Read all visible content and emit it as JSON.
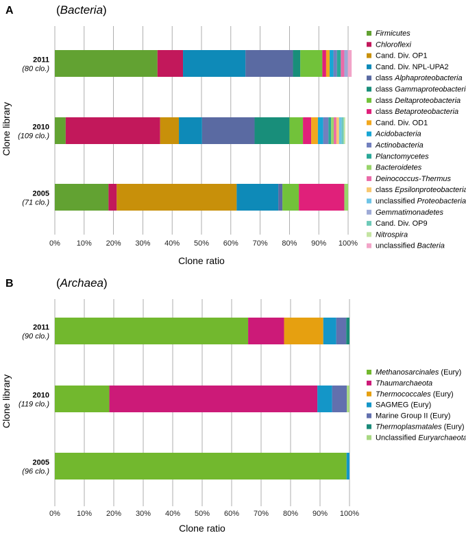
{
  "chart_data": [
    {
      "type": "bar",
      "orientation": "horizontal",
      "stacked": true,
      "panel_label": "A",
      "title": "(Bacteria)",
      "xlabel": "Clone ratio",
      "ylabel": "Clone library",
      "xlim": [
        0,
        100
      ],
      "xticks": [
        "0%",
        "10%",
        "20%",
        "30%",
        "40%",
        "50%",
        "60%",
        "70%",
        "80%",
        "90%",
        "100%"
      ],
      "grid": true,
      "legend_position": "right",
      "categories": [
        "2011",
        "2010",
        "2005"
      ],
      "category_counts": [
        "(80 clo.)",
        "(109 clo.)",
        "(71 clo.)"
      ],
      "series": [
        {
          "name": "Firmicutes",
          "legend": [
            [
              "Firmicutes",
              true
            ]
          ],
          "color": "#62a232",
          "values": [
            35.0,
            3.7,
            18.3
          ]
        },
        {
          "name": "Chloroflexi",
          "legend": [
            [
              "Chloroflexi",
              true
            ]
          ],
          "color": "#c2185b",
          "values": [
            8.7,
            32.2,
            2.8
          ]
        },
        {
          "name": "Cand. Div. OP1",
          "legend": [
            [
              "Cand. Div. OP1",
              false
            ]
          ],
          "color": "#c8900a",
          "values": [
            0,
            6.4,
            40.9
          ]
        },
        {
          "name": "Cand. Div. NPL-UPA2",
          "legend": [
            [
              "Cand. Div. NPL-UPA2",
              false
            ]
          ],
          "color": "#0e8ab8",
          "values": [
            21.3,
            7.9,
            14.2
          ]
        },
        {
          "name": "class Alphaproteobacteria",
          "legend": [
            [
              "class ",
              false
            ],
            [
              "Alphaproteobacteria",
              true
            ]
          ],
          "color": "#5a6aa2",
          "values": [
            16.2,
            17.9,
            1.4
          ]
        },
        {
          "name": "class Gammaproteobacteria",
          "legend": [
            [
              "class ",
              false
            ],
            [
              "Gammaproteobacteria",
              true
            ]
          ],
          "color": "#188e7a",
          "values": [
            2.5,
            11.9,
            0
          ]
        },
        {
          "name": "class Deltaproteobacteria",
          "legend": [
            [
              "class ",
              false
            ],
            [
              "Deltaproteobacteria",
              true
            ]
          ],
          "color": "#72c23a",
          "values": [
            7.5,
            4.6,
            5.6
          ]
        },
        {
          "name": "class Betaproteobacteria",
          "legend": [
            [
              "class ",
              false
            ],
            [
              "Betaproteobacteria",
              true
            ]
          ],
          "color": "#e0207a",
          "values": [
            1.3,
            2.8,
            15.5
          ]
        },
        {
          "name": "Cand. Div. OD1",
          "legend": [
            [
              "Cand. Div. OD1",
              false
            ]
          ],
          "color": "#f2a81e",
          "values": [
            1.2,
            2.3,
            0
          ]
        },
        {
          "name": "Acidobacteria",
          "legend": [
            [
              "Acidobacteria",
              true
            ]
          ],
          "color": "#18a6d4",
          "values": [
            1.3,
            1.8,
            0
          ]
        },
        {
          "name": "Actinobacteria",
          "legend": [
            [
              "Actinobacteria",
              true
            ]
          ],
          "color": "#7280be",
          "values": [
            1.2,
            1.8,
            0
          ]
        },
        {
          "name": "Planctomycetes",
          "legend": [
            [
              "Planctomycetes",
              true
            ]
          ],
          "color": "#2aa898",
          "values": [
            1.3,
            0.9,
            0
          ]
        },
        {
          "name": "Bacteroidetes",
          "legend": [
            [
              "Bacteroidetes",
              true
            ]
          ],
          "color": "#98d46a",
          "values": [
            0,
            0.9,
            1.3
          ]
        },
        {
          "name": "Deinococcus-Thermus",
          "legend": [
            [
              "Deinococcus-Thermus",
              true
            ]
          ],
          "color": "#ea6aa8",
          "values": [
            1.2,
            0.9,
            0
          ]
        },
        {
          "name": "class Epsilonproteobacteria",
          "legend": [
            [
              "class ",
              false
            ],
            [
              "Epsilonproteobacteria",
              true
            ]
          ],
          "color": "#f8c870",
          "values": [
            0,
            0.9,
            0
          ]
        },
        {
          "name": "unclassified Proteobacteria",
          "legend": [
            [
              "unclassified ",
              false
            ],
            [
              "Proteobacteria",
              true
            ]
          ],
          "color": "#6ec4e6",
          "values": [
            0,
            0.9,
            0
          ]
        },
        {
          "name": "Gemmatimonadetes",
          "legend": [
            [
              "Gemmatimonadetes",
              true
            ]
          ],
          "color": "#9eaad6",
          "values": [
            1.2,
            0,
            0
          ]
        },
        {
          "name": "Cand. Div. OP9",
          "legend": [
            [
              "Cand. Div. OP9",
              false
            ]
          ],
          "color": "#6ecab8",
          "values": [
            0,
            0.7,
            0
          ]
        },
        {
          "name": "Nitrospira",
          "legend": [
            [
              "Nitrospira",
              true
            ]
          ],
          "color": "#c4e4a2",
          "values": [
            0,
            0.5,
            0
          ]
        },
        {
          "name": "unclassified Bacteria",
          "legend": [
            [
              "unclassified ",
              false
            ],
            [
              "Bacteria",
              true
            ]
          ],
          "color": "#f2a4c8",
          "values": [
            1.3,
            0,
            0
          ]
        }
      ]
    },
    {
      "type": "bar",
      "orientation": "horizontal",
      "stacked": true,
      "panel_label": "B",
      "title": "(Archaea)",
      "xlabel": "Clone ratio",
      "ylabel": "Clone library",
      "xlim": [
        0,
        100
      ],
      "xticks": [
        "0%",
        "10%",
        "20%",
        "30%",
        "40%",
        "50%",
        "60%",
        "70%",
        "80%",
        "90%",
        "100%"
      ],
      "grid": true,
      "legend_position": "right",
      "categories": [
        "2011",
        "2010",
        "2005"
      ],
      "category_counts": [
        "(90 clo.)",
        "(119 clo.)",
        "(96 clo.)"
      ],
      "series": [
        {
          "name": "Methanosarcinales (Eury)",
          "legend": [
            [
              "Methanosarcinales",
              true
            ],
            [
              " (Eury)",
              false
            ]
          ],
          "color": "#72b82e",
          "values": [
            65.6,
            18.5,
            99.0
          ]
        },
        {
          "name": "Thaumarchaeota",
          "legend": [
            [
              "Thaumarchaeota",
              true
            ]
          ],
          "color": "#cc1a78",
          "values": [
            12.2,
            70.6,
            0
          ]
        },
        {
          "name": "Thermococcales (Eury)",
          "legend": [
            [
              "Thermococcales",
              true
            ],
            [
              " (Eury)",
              false
            ]
          ],
          "color": "#e6a010",
          "values": [
            13.3,
            0,
            0
          ]
        },
        {
          "name": "SAGMEG (Eury)",
          "legend": [
            [
              "SAGMEG (Eury)",
              false
            ]
          ],
          "color": "#1496c8",
          "values": [
            4.4,
            5.0,
            1.0
          ]
        },
        {
          "name": "Marine Group II (Eury)",
          "legend": [
            [
              "Marine Group II (Eury)",
              false
            ]
          ],
          "color": "#6270ae",
          "values": [
            3.4,
            5.0,
            0
          ]
        },
        {
          "name": "Thermoplasmatales (Eury)",
          "legend": [
            [
              "Thermoplasmatales",
              true
            ],
            [
              " (Eury)",
              false
            ]
          ],
          "color": "#1a8a78",
          "values": [
            1.1,
            0,
            0
          ]
        },
        {
          "name": "Unclassified Euryarchaeota",
          "legend": [
            [
              "Unclassified ",
              false
            ],
            [
              "Euryarchaeota",
              true
            ]
          ],
          "color": "#a8d882",
          "values": [
            0,
            0.9,
            0
          ]
        }
      ]
    }
  ]
}
